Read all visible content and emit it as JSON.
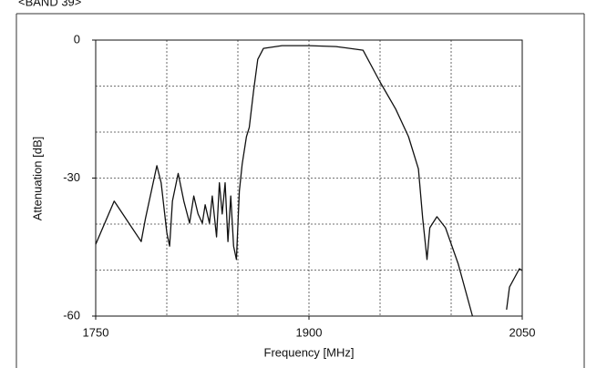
{
  "chart_data": {
    "type": "line",
    "title": "<BAND 39>",
    "x_label": "Frequency [MHz]",
    "y_label": "Attenuation  [dB]",
    "xlim": [
      1750,
      2050
    ],
    "ylim": [
      -60,
      0
    ],
    "xticks": [
      1750,
      1900,
      2050
    ],
    "yticks": [
      -60,
      -30,
      0
    ],
    "xgrid": [
      1800,
      1850,
      1900,
      1950,
      2000
    ],
    "ygrid": [
      -10,
      -20,
      -30,
      -40,
      -50
    ],
    "grid": true,
    "series": [
      {
        "color": "#111111",
        "x": [
          1750,
          1763,
          1782,
          1785,
          1793,
          1796,
          1800,
          1802,
          1804,
          1808,
          1812,
          1816,
          1819,
          1822,
          1825,
          1827,
          1830,
          1832,
          1835,
          1837,
          1839,
          1841,
          1843,
          1845,
          1847,
          1849,
          1851,
          1853,
          1856,
          1858,
          1861,
          1864,
          1868,
          1881,
          1900,
          1919,
          1938,
          1950,
          1961,
          1970,
          1977,
          1980,
          1983,
          1985,
          1990,
          1996,
          2005,
          2015,
          2027,
          2039,
          2041,
          2048,
          2050
        ],
        "values": [
          -44.4,
          -35,
          -43.8,
          -38.8,
          -27.3,
          -31,
          -41.8,
          -44.8,
          -35,
          -29,
          -35,
          -39.8,
          -33.9,
          -37.8,
          -39.8,
          -35.8,
          -39.8,
          -33.9,
          -42.8,
          -31,
          -37.8,
          -31,
          -43.8,
          -33.9,
          -44.8,
          -47.7,
          -32.9,
          -27,
          -21,
          -19,
          -11.1,
          -4.2,
          -1.8,
          -1.2,
          -1.2,
          -1.4,
          -2.2,
          -9.1,
          -15,
          -21,
          -28,
          -38.8,
          -47.7,
          -40.8,
          -38.4,
          -40.8,
          -48.7,
          -60,
          null,
          -58.6,
          -53.7,
          -49.7,
          -50.1
        ]
      }
    ]
  }
}
